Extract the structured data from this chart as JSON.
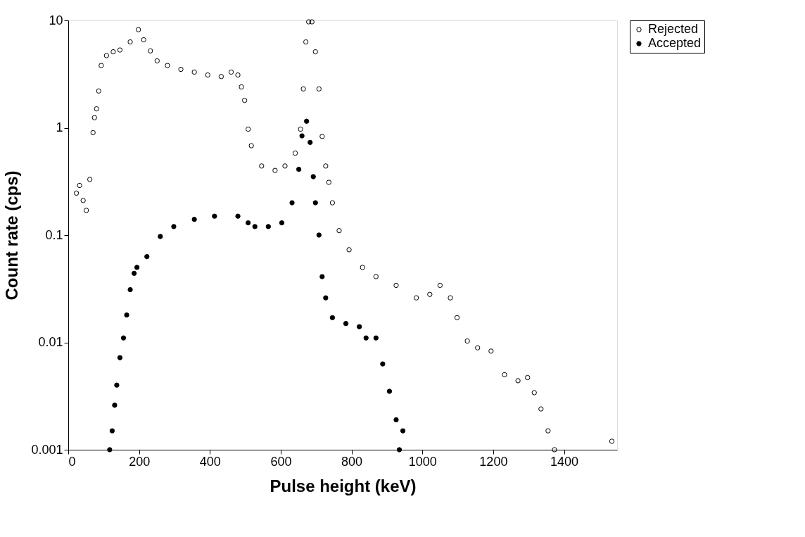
{
  "chart_data": {
    "type": "scatter",
    "xlabel": "Pulse height (keV)",
    "ylabel": "Count rate (cps)",
    "log": "y",
    "xlim": [
      0,
      1550
    ],
    "ylim": [
      0.001,
      10
    ],
    "xticks": [
      0,
      200,
      400,
      600,
      800,
      1000,
      1200,
      1400
    ],
    "yticks": [
      0.001,
      0.01,
      0.1,
      1,
      10
    ],
    "grid": false,
    "legend": "right",
    "marker": "circle",
    "series": [
      {
        "name": "Rejected",
        "color": "#000000",
        "x": [
          23,
          32,
          42,
          51,
          61,
          70,
          74,
          80,
          86,
          93,
          108,
          127,
          146,
          175,
          198,
          213,
          232,
          251,
          280,
          318,
          356,
          394,
          432,
          460,
          479,
          489,
          498,
          508,
          517,
          546,
          584,
          612,
          641,
          656,
          664,
          671,
          679,
          688,
          698,
          708,
          717,
          727,
          736,
          746,
          765,
          793,
          831,
          869,
          926,
          983,
          1021,
          1050,
          1079,
          1098,
          1127,
          1156,
          1194,
          1232,
          1270,
          1297,
          1316,
          1335,
          1355,
          1373,
          1535
        ],
        "values": [
          0.246,
          0.29,
          0.21,
          0.17,
          0.33,
          0.9,
          1.24,
          1.5,
          2.2,
          3.8,
          4.7,
          5.1,
          5.3,
          6.3,
          8.2,
          6.6,
          5.2,
          4.2,
          3.8,
          3.5,
          3.3,
          3.1,
          3.0,
          3.3,
          3.1,
          2.4,
          1.8,
          0.97,
          0.68,
          0.44,
          0.4,
          0.44,
          0.58,
          0.97,
          2.3,
          6.3,
          9.7,
          9.7,
          5.1,
          2.3,
          0.83,
          0.44,
          0.31,
          0.2,
          0.11,
          0.073,
          0.05,
          0.041,
          0.034,
          0.026,
          0.028,
          0.034,
          0.026,
          0.017,
          0.0103,
          0.0089,
          0.0083,
          0.005,
          0.0044,
          0.0047,
          0.0034,
          0.0024,
          0.0015,
          0.001,
          0.0012
        ]
      },
      {
        "name": "Accepted",
        "color": "#000000",
        "x": [
          117,
          124,
          131,
          137,
          146,
          156,
          165,
          175,
          186,
          194,
          222,
          260,
          298,
          356,
          413,
          479,
          508,
          527,
          565,
          603,
          632,
          651,
          660,
          673,
          683,
          692,
          698,
          708,
          717,
          727,
          746,
          784,
          822,
          841,
          869,
          888,
          907,
          926,
          945,
          935
        ],
        "values": [
          0.001,
          0.0015,
          0.0026,
          0.004,
          0.0072,
          0.011,
          0.018,
          0.031,
          0.044,
          0.05,
          0.063,
          0.097,
          0.12,
          0.14,
          0.15,
          0.15,
          0.13,
          0.12,
          0.12,
          0.13,
          0.2,
          0.41,
          0.84,
          1.15,
          0.73,
          0.35,
          0.2,
          0.1,
          0.041,
          0.026,
          0.017,
          0.015,
          0.014,
          0.011,
          0.011,
          0.0063,
          0.0035,
          0.0019,
          0.0015,
          0.001
        ]
      }
    ]
  }
}
